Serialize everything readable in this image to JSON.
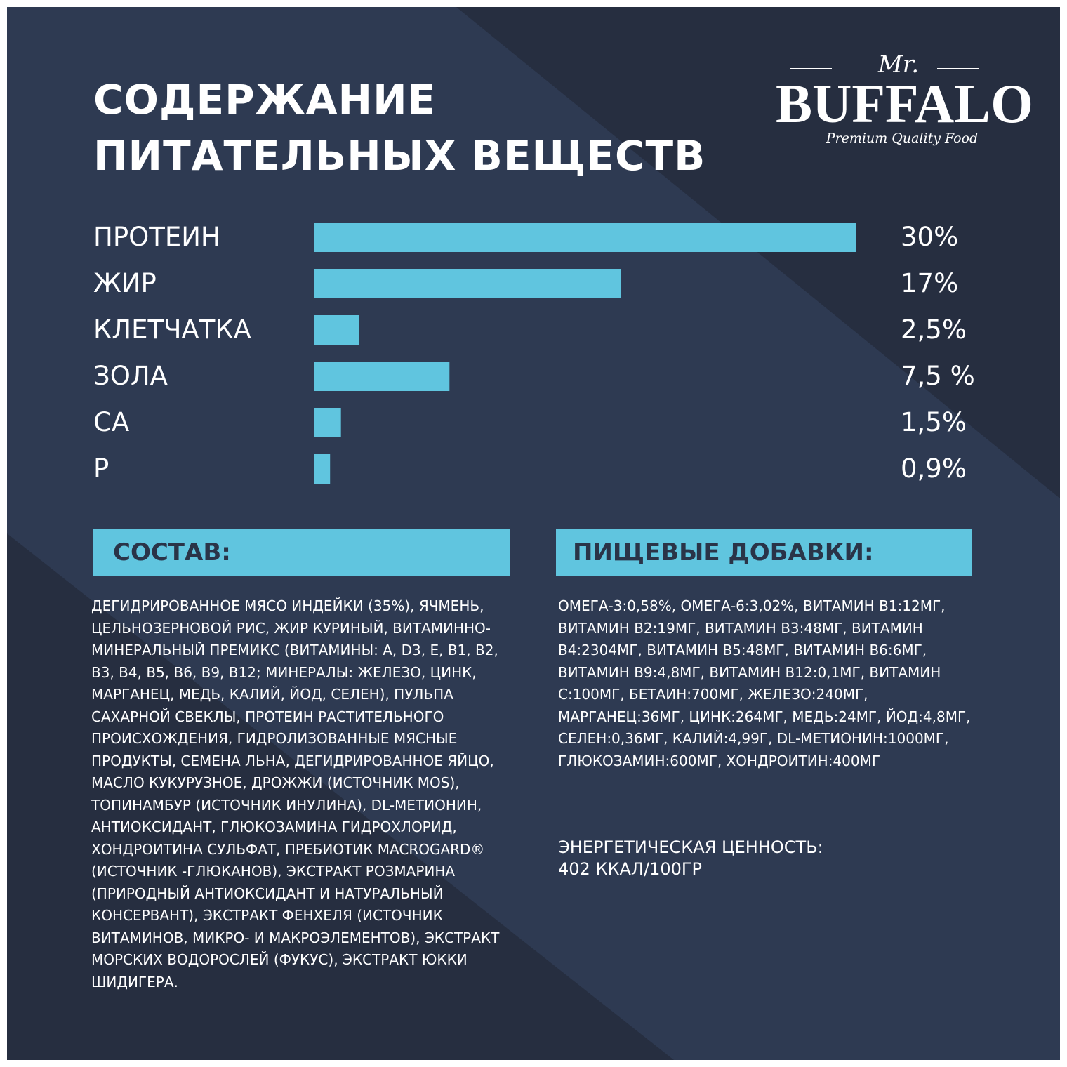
{
  "title": {
    "line1": "СОДЕРЖАНИЕ",
    "line2": "ПИТАТЕЛЬНЫХ ВЕЩЕСТВ"
  },
  "logo": {
    "mr": "Mr.",
    "brand": "BUFFALO",
    "tagline": "Premium Quality Food"
  },
  "colors": {
    "panel_dark": "#262e40",
    "panel_mid": "#2e3a52",
    "bar": "#60c5df",
    "header_text": "#2a3448",
    "text": "#ffffff"
  },
  "chart_data": {
    "type": "bar",
    "orientation": "horizontal",
    "categories": [
      "ПРОТЕИН",
      "ЖИР",
      "КЛЕТЧАТКА",
      "ЗОЛА",
      "CA",
      "P"
    ],
    "values": [
      30,
      17,
      2.5,
      7.5,
      1.5,
      0.9
    ],
    "value_labels": [
      "30%",
      "17%",
      "2,5%",
      "7,5 %",
      "1,5%",
      "0,9%"
    ],
    "unit": "%",
    "xlim": [
      0,
      30
    ],
    "grid": false,
    "legend": "none"
  },
  "composition": {
    "header": "СОСТАВ:",
    "text": "ДЕГИДРИРОВАННОЕ МЯСО ИНДЕЙКИ (35%), ЯЧМЕНЬ, ЦЕЛЬНОЗЕРНОВОЙ РИС, ЖИР КУРИНЫЙ, ВИТАМИННО-МИНЕРАЛЬНЫЙ ПРЕМИКС (ВИТАМИНЫ: A, D3, E, B1, B2, B3, B4, B5, B6, B9, B12; МИНЕРАЛЫ: ЖЕЛЕЗО, ЦИНК, МАРГАНЕЦ, МЕДЬ, КАЛИЙ, ЙОД, СЕЛЕН), ПУЛЬПА САХАРНОЙ СВЕКЛЫ, ПРОТЕИН РАСТИТЕЛЬНОГО ПРОИСХОЖДЕНИЯ, ГИДРОЛИЗОВАННЫЕ МЯСНЫЕ ПРОДУКТЫ, СЕМЕНА ЛЬНА, ДЕГИДРИРОВАННОЕ ЯЙЦО, МАСЛО КУКУРУЗНОЕ, ДРОЖЖИ (ИСТОЧНИК MOS), ТОПИНАМБУР (ИСТОЧНИК ИНУЛИНА), DL-МЕТИОНИН, АНТИОКСИДАНТ, ГЛЮКОЗАМИНА ГИДРОХЛОРИД, ХОНДРОИТИНА СУЛЬФАТ, ПРЕБИОТИК MACROGARD® (ИСТОЧНИК -ГЛЮКАНОВ), ЭКСТРАКТ РОЗМАРИНА (ПРИРОДНЫЙ АНТИОКСИДАНТ И НАТУРАЛЬНЫЙ КОНСЕРВАНТ), ЭКСТРАКТ ФЕНХЕЛЯ (ИСТОЧНИК ВИТАМИНОВ, МИКРО- И МАКРОЭЛЕМЕНТОВ), ЭКСТРАКТ МОРСКИХ ВОДОРОСЛЕЙ (ФУКУС), ЭКСТРАКТ ЮККИ ШИДИГЕРА."
  },
  "additives": {
    "header": "ПИЩЕВЫЕ ДОБАВКИ:",
    "text": "ОМЕГА-3:0,58%, ОМЕГА-6:3,02%, ВИТАМИН B1:12МГ, ВИТАМИН B2:19МГ, ВИТАМИН B3:48МГ, ВИТАМИН B4:2304МГ, ВИТАМИН B5:48МГ, ВИТАМИН B6:6МГ, ВИТАМИН B9:4,8МГ, ВИТАМИН B12:0,1МГ, ВИТАМИН C:100МГ, БЕТАИН:700МГ, ЖЕЛЕЗО:240МГ, МАРГАНЕЦ:36МГ, ЦИНК:264МГ, МЕДЬ:24МГ, ЙОД:4,8МГ, СЕЛЕН:0,36МГ, КАЛИЙ:4,99Г, DL-МЕТИОНИН:1000МГ, ГЛЮКОЗАМИН:600МГ, ХОНДРОИТИН:400МГ",
    "energy_label": "ЭНЕРГЕТИЧЕСКАЯ ЦЕННОСТЬ:",
    "energy_value": "402 ККАЛ/100ГР"
  }
}
